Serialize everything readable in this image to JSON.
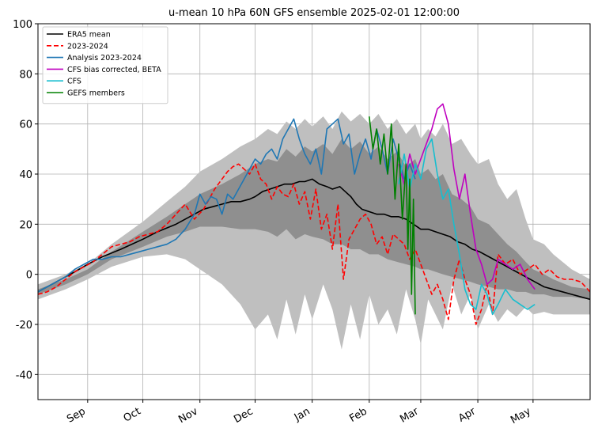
{
  "chart_data": {
    "type": "line",
    "title": "u-mean 10 hPa 60N GFS ensemble 2025-02-01 12:00:00",
    "xlabel": "",
    "ylabel": "",
    "xlim": [
      0,
      300
    ],
    "ylim": [
      -50,
      100
    ],
    "grid": true,
    "legend_position": "top-left",
    "x_unit": "days since 2024-07-01 (tick labels are month names)",
    "x_ticks": [
      {
        "label": "Sep",
        "x": 27
      },
      {
        "label": "Oct",
        "x": 57
      },
      {
        "label": "Nov",
        "x": 88
      },
      {
        "label": "Dec",
        "x": 118
      },
      {
        "label": "Jan",
        "x": 149
      },
      {
        "label": "Feb",
        "x": 180
      },
      {
        "label": "Mar",
        "x": 208
      },
      {
        "label": "Apr",
        "x": 239
      },
      {
        "label": "May",
        "x": 269
      }
    ],
    "y_ticks": [
      -40,
      -20,
      0,
      20,
      40,
      60,
      80,
      100
    ],
    "bands": [
      {
        "name": "full ensemble range",
        "color": "#bfbfbf",
        "x": [
          0,
          15,
          27,
          40,
          57,
          70,
          80,
          88,
          100,
          110,
          118,
          125,
          130,
          135,
          140,
          145,
          149,
          155,
          160,
          165,
          170,
          175,
          180,
          185,
          190,
          195,
          200,
          205,
          208,
          212,
          216,
          220,
          225,
          230,
          235,
          239,
          245,
          250,
          255,
          260,
          265,
          269,
          275,
          280,
          290,
          300
        ],
        "upper": [
          -4,
          0,
          4,
          12,
          21,
          29,
          35,
          41,
          46,
          51,
          54,
          58,
          56,
          61,
          58,
          62,
          59,
          63,
          58,
          65,
          61,
          64,
          60,
          64,
          58,
          62,
          56,
          60,
          54,
          58,
          55,
          60,
          52,
          54,
          48,
          44,
          46,
          36,
          30,
          34,
          22,
          14,
          12,
          8,
          2,
          -2
        ],
        "lower": [
          -10,
          -6,
          -2,
          3,
          7,
          8,
          6,
          2,
          -4,
          -12,
          -22,
          -16,
          -26,
          -10,
          -24,
          -8,
          -18,
          -4,
          -14,
          -30,
          -12,
          -26,
          -8,
          -20,
          -14,
          -24,
          -6,
          -18,
          -28,
          -10,
          -16,
          -22,
          -4,
          -16,
          -8,
          -22,
          -12,
          -19,
          -14,
          -17,
          -13,
          -16,
          -15,
          -16,
          -16,
          -16
        ]
      },
      {
        "name": "inner ensemble range",
        "color": "#8f8f8f",
        "x": [
          0,
          15,
          27,
          40,
          57,
          70,
          80,
          88,
          100,
          110,
          118,
          125,
          130,
          135,
          140,
          145,
          149,
          155,
          160,
          165,
          170,
          175,
          180,
          185,
          190,
          195,
          200,
          205,
          208,
          212,
          216,
          220,
          225,
          230,
          235,
          239,
          245,
          250,
          255,
          260,
          265,
          269,
          275,
          280,
          290,
          300
        ],
        "upper": [
          -6,
          -2,
          2,
          9,
          17,
          23,
          28,
          32,
          36,
          40,
          44,
          46,
          45,
          50,
          47,
          51,
          49,
          52,
          48,
          54,
          50,
          53,
          48,
          51,
          46,
          49,
          43,
          46,
          40,
          42,
          38,
          40,
          32,
          30,
          27,
          22,
          20,
          16,
          12,
          9,
          5,
          2,
          0,
          -2,
          -5,
          -6
        ],
        "lower": [
          -8,
          -4,
          0,
          6,
          11,
          15,
          17,
          19,
          19,
          18,
          18,
          17,
          15,
          18,
          14,
          16,
          15,
          14,
          12,
          12,
          10,
          10,
          8,
          8,
          6,
          5,
          4,
          3,
          2,
          2,
          1,
          0,
          -1,
          -2,
          -3,
          -4,
          -5,
          -6,
          -6,
          -7,
          -7,
          -8,
          -8,
          -9,
          -9,
          -10
        ]
      }
    ],
    "series": [
      {
        "name": "ERA5 mean",
        "color": "#000000",
        "dash": "solid",
        "width": 1.6,
        "x": [
          0,
          10,
          20,
          27,
          35,
          45,
          57,
          65,
          75,
          85,
          90,
          95,
          100,
          105,
          110,
          115,
          118,
          122,
          126,
          130,
          134,
          138,
          142,
          145,
          149,
          153,
          157,
          160,
          164,
          167,
          170,
          173,
          176,
          180,
          184,
          188,
          192,
          196,
          200,
          204,
          208,
          212,
          216,
          220,
          224,
          228,
          232,
          236,
          240,
          245,
          250,
          255,
          260,
          265,
          270,
          275,
          280,
          285,
          290,
          295,
          300
        ],
        "y": [
          -7,
          -3,
          1,
          4,
          7,
          10,
          14,
          17,
          20,
          24,
          26,
          27,
          28,
          29,
          29,
          30,
          31,
          33,
          34,
          35,
          36,
          36,
          37,
          37,
          38,
          36,
          35,
          34,
          35,
          33,
          31,
          28,
          26,
          25,
          24,
          24,
          23,
          23,
          22,
          20,
          18,
          18,
          17,
          16,
          15,
          13,
          12,
          10,
          9,
          7,
          5,
          3,
          1,
          -1,
          -3,
          -5,
          -6,
          -7,
          -8,
          -9,
          -10
        ]
      },
      {
        "name": "2023-2024",
        "color": "#ff0000",
        "dash": "dashed",
        "width": 1.6,
        "x": [
          0,
          5,
          10,
          15,
          20,
          25,
          30,
          35,
          40,
          45,
          50,
          55,
          60,
          65,
          70,
          75,
          80,
          85,
          90,
          93,
          96,
          100,
          103,
          106,
          109,
          112,
          115,
          118,
          121,
          124,
          127,
          130,
          133,
          136,
          139,
          142,
          145,
          148,
          151,
          154,
          157,
          160,
          163,
          166,
          169,
          172,
          175,
          178,
          181,
          184,
          187,
          190,
          193,
          196,
          199,
          202,
          205,
          208,
          211,
          214,
          217,
          220,
          223,
          226,
          229,
          232,
          235,
          238,
          241,
          244,
          247,
          250,
          254,
          258,
          262,
          266,
          270,
          274,
          278,
          282,
          286,
          290,
          295,
          300
        ],
        "y": [
          -8,
          -7,
          -5,
          -2,
          1,
          3,
          5,
          8,
          11,
          12,
          13,
          15,
          16,
          17,
          20,
          24,
          28,
          22,
          26,
          30,
          34,
          38,
          41,
          43,
          44,
          42,
          40,
          44,
          38,
          36,
          30,
          35,
          32,
          31,
          36,
          28,
          33,
          22,
          34,
          18,
          24,
          10,
          28,
          -2,
          14,
          18,
          22,
          24,
          20,
          12,
          15,
          8,
          16,
          14,
          12,
          6,
          10,
          4,
          -2,
          -8,
          -4,
          -10,
          -18,
          -2,
          6,
          -2,
          -8,
          -20,
          -14,
          -4,
          -16,
          8,
          4,
          6,
          0,
          2,
          4,
          0,
          2,
          -1,
          -2,
          -2,
          -3,
          -7
        ]
      },
      {
        "name": "Analysis 2023-2024",
        "color": "#1f77b4",
        "dash": "solid",
        "width": 1.6,
        "x": [
          0,
          5,
          10,
          15,
          20,
          25,
          30,
          35,
          40,
          45,
          50,
          55,
          60,
          65,
          70,
          75,
          80,
          85,
          88,
          91,
          94,
          97,
          100,
          103,
          106,
          109,
          112,
          115,
          118,
          121,
          124,
          127,
          130,
          133,
          136,
          139,
          142,
          145,
          148,
          151,
          154,
          157,
          160,
          163,
          166,
          169,
          172,
          175,
          178,
          181,
          184,
          187,
          190,
          193,
          196,
          199,
          202,
          205
        ],
        "y": [
          -7,
          -5,
          -3,
          -1,
          2,
          4,
          6,
          6,
          7,
          7,
          8,
          9,
          10,
          11,
          12,
          14,
          18,
          24,
          32,
          28,
          31,
          30,
          24,
          32,
          30,
          34,
          38,
          42,
          46,
          44,
          48,
          50,
          46,
          54,
          58,
          62,
          54,
          48,
          44,
          50,
          40,
          58,
          60,
          62,
          52,
          56,
          40,
          48,
          54,
          46,
          58,
          50,
          40,
          54,
          46,
          38,
          44,
          38
        ]
      },
      {
        "name": "CFS bias corrected, BETA",
        "color": "#bf00bf",
        "dash": "solid",
        "width": 1.6,
        "x": [
          196,
          199,
          202,
          205,
          208,
          211,
          214,
          217,
          220,
          223,
          226,
          229,
          232,
          235,
          238,
          241,
          244,
          247,
          250,
          254,
          258,
          262,
          266,
          270
        ],
        "y": [
          44,
          36,
          48,
          40,
          46,
          52,
          58,
          66,
          68,
          60,
          42,
          30,
          40,
          24,
          10,
          4,
          -4,
          -2,
          6,
          4,
          2,
          4,
          -2,
          -6
        ]
      },
      {
        "name": "CFS",
        "color": "#17becf",
        "dash": "solid",
        "width": 1.6,
        "x": [
          196,
          199,
          202,
          205,
          208,
          211,
          214,
          217,
          220,
          223,
          226,
          229,
          232,
          235,
          238,
          241,
          244,
          247,
          250,
          254,
          258,
          262,
          266,
          270
        ],
        "y": [
          36,
          48,
          34,
          44,
          38,
          50,
          54,
          40,
          30,
          34,
          20,
          8,
          -6,
          -12,
          -14,
          -4,
          -8,
          -16,
          -12,
          -6,
          -10,
          -12,
          -14,
          -12
        ]
      },
      {
        "name": "GEFS members",
        "color": "#008000",
        "dash": "solid",
        "width": 1.6,
        "x": [
          180,
          182,
          184,
          186,
          188,
          190,
          192,
          194,
          196,
          198,
          200,
          201,
          202,
          203,
          204,
          205
        ],
        "y": [
          63,
          50,
          58,
          44,
          56,
          40,
          60,
          30,
          52,
          22,
          44,
          10,
          38,
          -8,
          30,
          -16
        ]
      }
    ]
  }
}
